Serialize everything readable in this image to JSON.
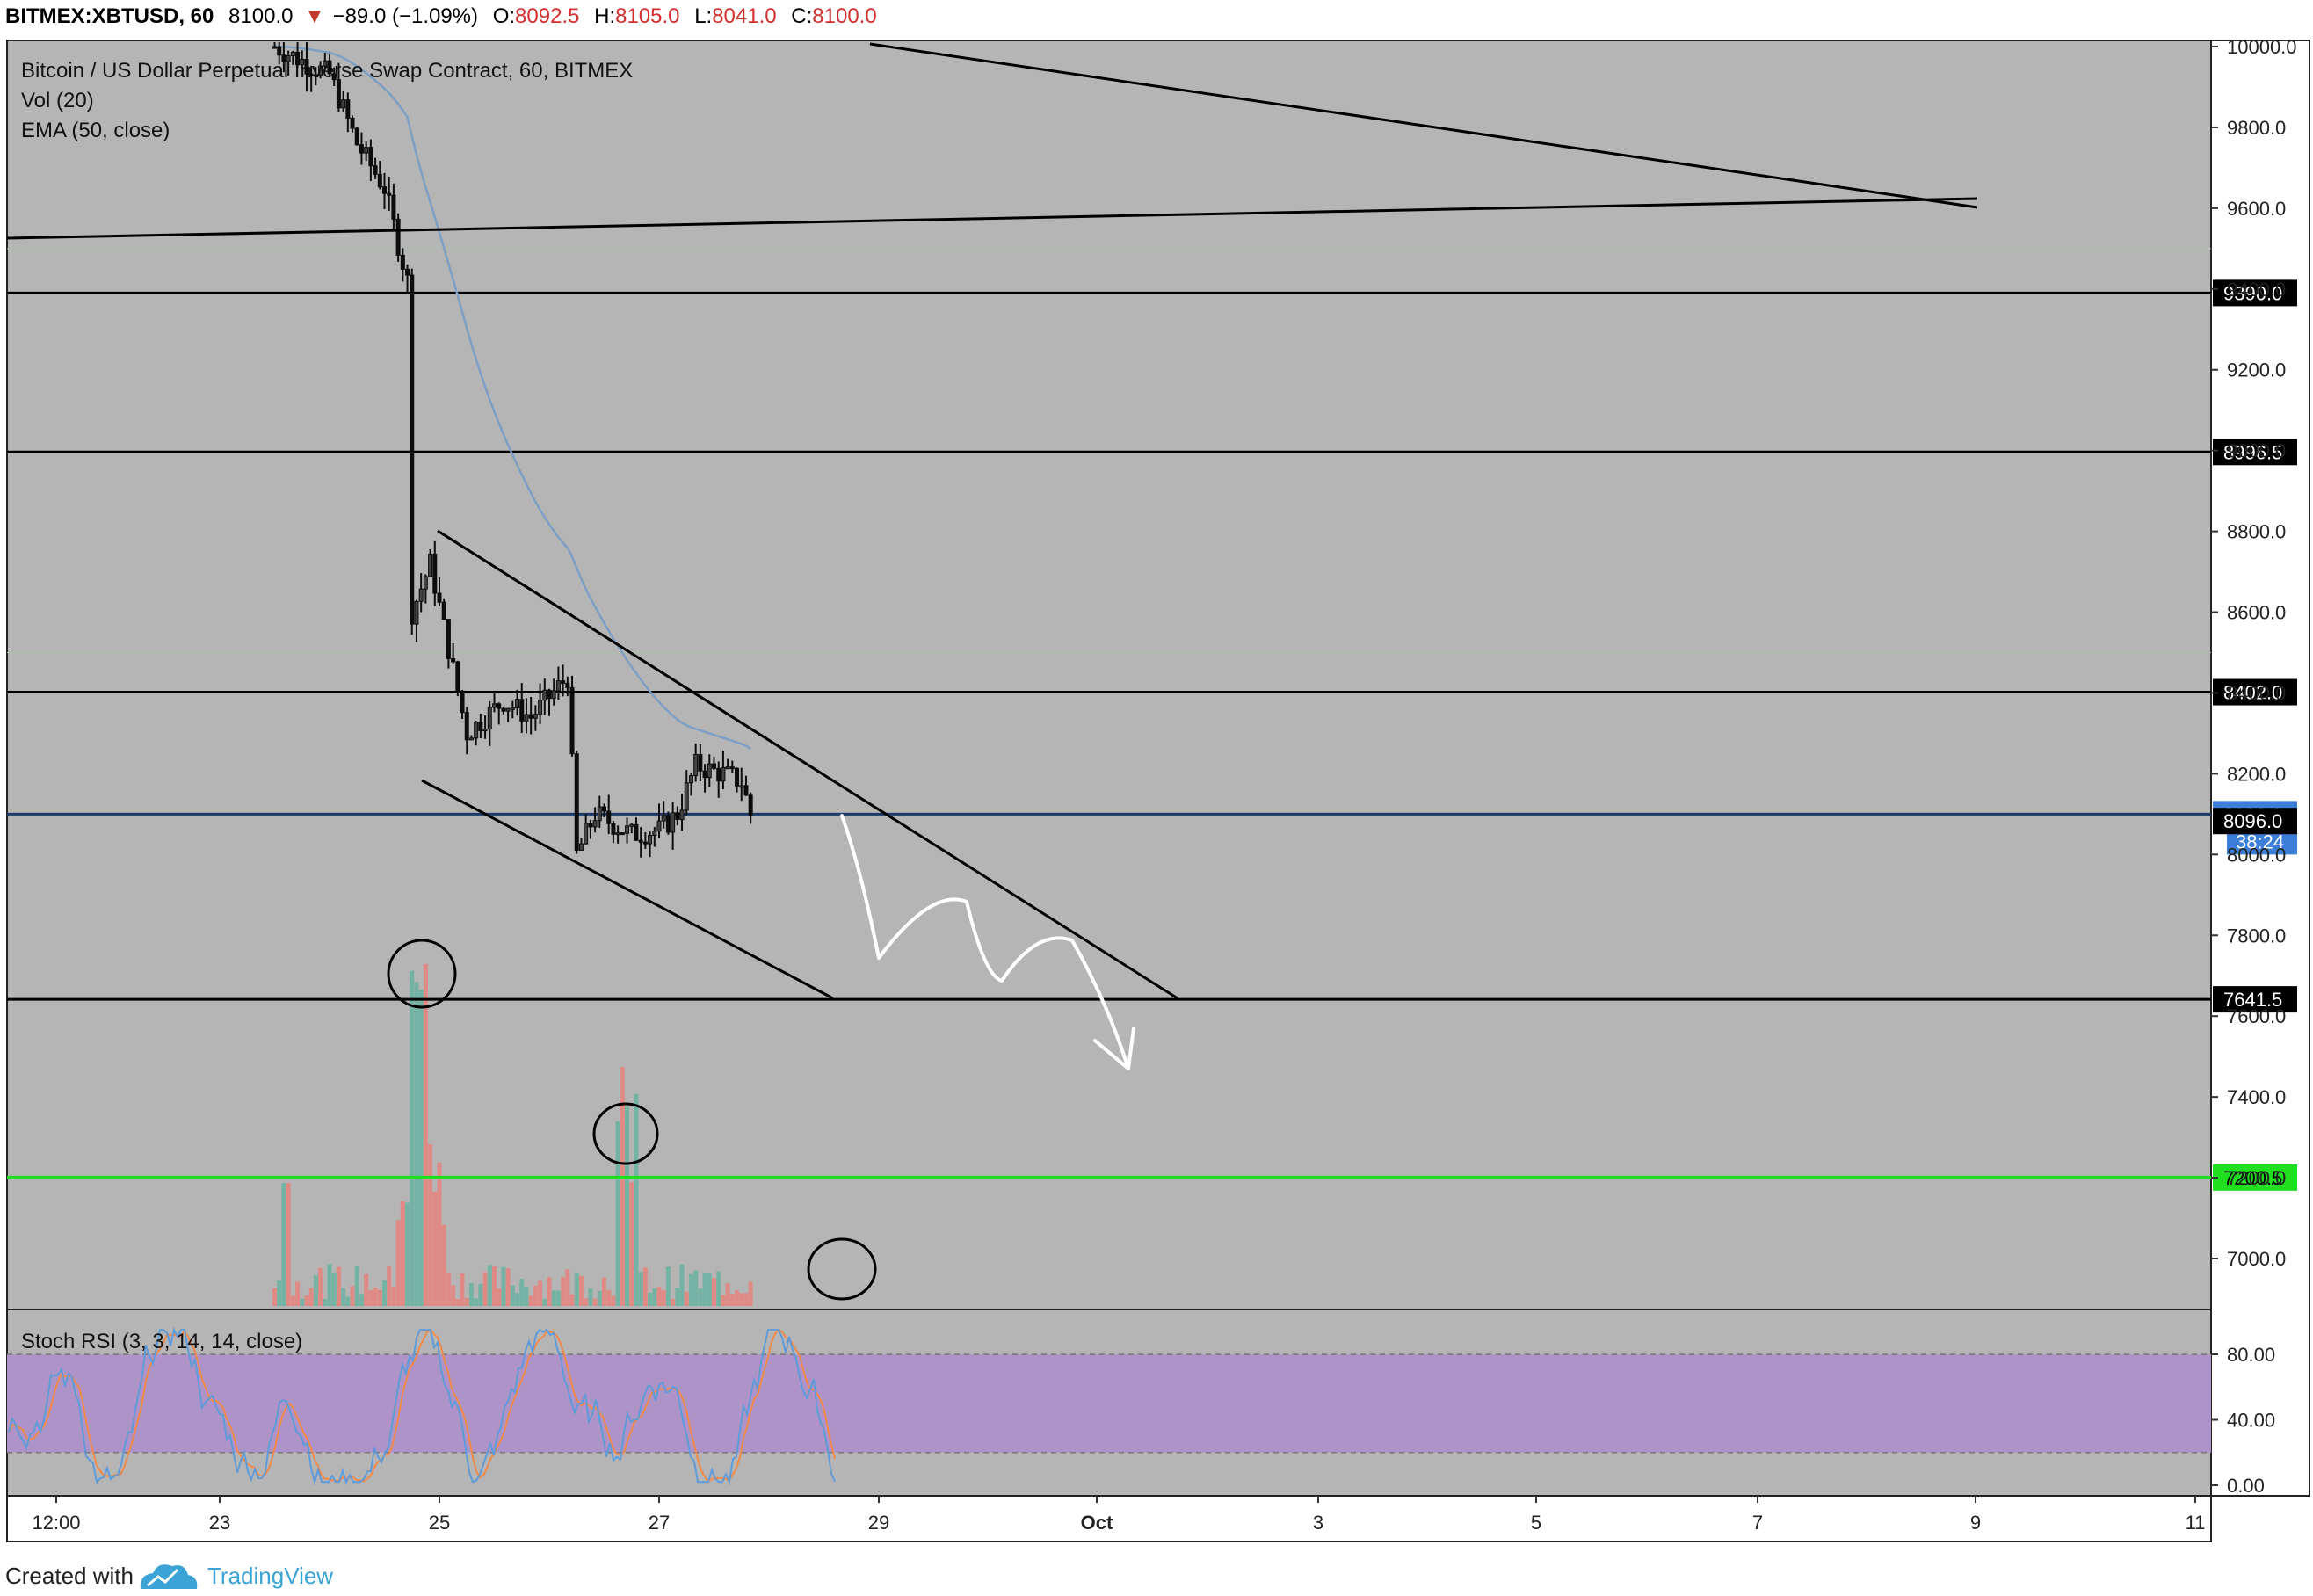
{
  "header": {
    "symbol": "BITMEX:XBTUSD, 60",
    "last": "8100.0",
    "change_arrow": "▼",
    "change": "−89.0 (−1.09%)",
    "open_label": "O:",
    "open": "8092.5",
    "high_label": "H:",
    "high": "8105.0",
    "low_label": "L:",
    "low": "8041.0",
    "close_label": "C:",
    "close": "8100.0"
  },
  "legend": {
    "title": "Bitcoin / US Dollar Perpetual Inverse Swap Contract, 60, BITMEX",
    "vol": "Vol (20)",
    "ema": "EMA (50, close)"
  },
  "rsi_legend": "Stoch RSI (3, 3, 14, 14, close)",
  "footer": {
    "created_with": "Created with",
    "brand": "TradingView",
    "brand_icon": "tradingview-cloud-icon"
  },
  "colors": {
    "background": "#b5b5b5",
    "candle": "#0d0d0d",
    "ema": "#7d9fc4",
    "volume_up": "#74b3a3",
    "volume_down": "#e08a86",
    "support_green": "#1fe01f",
    "rsi_band": "#ad93c7",
    "rsi_k": "#5f9bd8",
    "rsi_d": "#f08a4b",
    "last_price": "#3b7fd9"
  },
  "chart_data": {
    "type": "candlestick",
    "yaxis": {
      "ticks": [
        "10000.0",
        "9800.0",
        "9600.0",
        "9400.0",
        "9200.0",
        "9000.0",
        "8800.0",
        "8600.0",
        "8400.0",
        "8200.0",
        "8000.0",
        "7800.0",
        "7600.0",
        "7400.0",
        "7200.0",
        "7000.0"
      ],
      "range": [
        6860,
        10020
      ]
    },
    "xaxis": {
      "ticks": [
        "12:00",
        "23",
        "25",
        "27",
        "29",
        "Oct",
        "3",
        "5",
        "7",
        "9",
        "11"
      ]
    },
    "price_path": [
      [
        "23 12:00",
        10000
      ],
      [
        "24 00:00",
        9930
      ],
      [
        "24 06:00",
        9760
      ],
      [
        "24 12:00",
        9650
      ],
      [
        "24 17:00",
        9420
      ],
      [
        "24 18:00",
        8600
      ],
      [
        "24 22:00",
        8720
      ],
      [
        "25 06:00",
        8300
      ],
      [
        "25 14:00",
        8380
      ],
      [
        "25 20:00",
        8340
      ],
      [
        "26 04:00",
        8440
      ],
      [
        "26 06:00",
        8000
      ],
      [
        "26 10:00",
        8100
      ],
      [
        "26 18:00",
        8050
      ],
      [
        "27 00:00",
        8060
      ],
      [
        "27 04:00",
        8100
      ],
      [
        "27 08:00",
        8220
      ],
      [
        "27 14:00",
        8200
      ],
      [
        "27 18:00",
        8180
      ],
      [
        "27 20:00",
        8100
      ]
    ],
    "level_lines": [
      {
        "label": "9390.0",
        "color": "#000000"
      },
      {
        "label": "8996.5",
        "color": "#000000"
      },
      {
        "label": "8402.0",
        "color": "#000000"
      },
      {
        "label": "8100.0",
        "color": "#3b7fd9",
        "countdown": "38:24"
      },
      {
        "label": "8096.0",
        "color": "#000000"
      },
      {
        "label": "7641.5",
        "color": "#000000"
      },
      {
        "label": "7200.5",
        "color": "#1fe01f"
      }
    ],
    "rsi": {
      "ticks": [
        "80.00",
        "40.00",
        "0.00"
      ],
      "band": [
        20,
        80
      ]
    }
  }
}
